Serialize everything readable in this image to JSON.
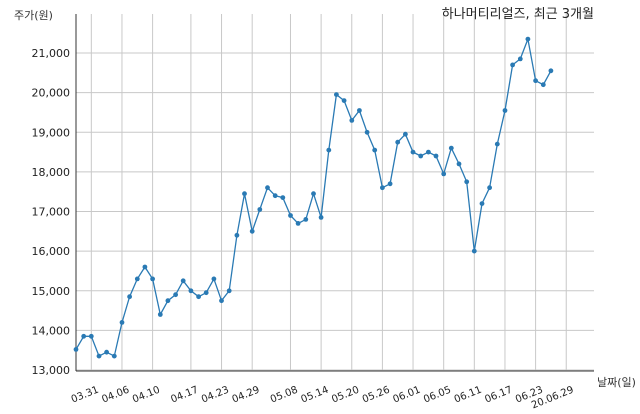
{
  "chart_data": {
    "type": "line",
    "title": "하나머티리얼즈, 최근 3개월",
    "ylabel": "주가(원)",
    "xlabel": "날짜(일)",
    "ylim": [
      13000,
      21700
    ],
    "yticks": [
      13000,
      14000,
      15000,
      16000,
      17000,
      18000,
      19000,
      20000,
      21000
    ],
    "ytick_labels": [
      "13,000",
      "14,000",
      "15,000",
      "16,000",
      "17,000",
      "18,000",
      "19,000",
      "20,000",
      "21,000"
    ],
    "grid": true,
    "color": "#2a7ab4",
    "x_ticks": [
      {
        "label": "03.31",
        "index": 2
      },
      {
        "label": "04.06",
        "index": 6
      },
      {
        "label": "04.10",
        "index": 10
      },
      {
        "label": "04.17",
        "index": 15
      },
      {
        "label": "04.23",
        "index": 19
      },
      {
        "label": "04.29",
        "index": 23
      },
      {
        "label": "05.08",
        "index": 28
      },
      {
        "label": "05.14",
        "index": 32
      },
      {
        "label": "05.20",
        "index": 36
      },
      {
        "label": "05.26",
        "index": 40
      },
      {
        "label": "06.01",
        "index": 44
      },
      {
        "label": "06.05",
        "index": 48
      },
      {
        "label": "06.11",
        "index": 52
      },
      {
        "label": "06.17",
        "index": 56
      },
      {
        "label": "06.23",
        "index": 60
      },
      {
        "label": "20.06.29",
        "index": 64
      }
    ],
    "series": [
      {
        "values": [
          13520,
          13850,
          13850,
          13350,
          13450,
          13350,
          14200,
          14850,
          15300,
          15600,
          15300,
          14400,
          14750,
          14900,
          15250,
          15000,
          14850,
          14950,
          15300,
          14750,
          15000,
          16400,
          17450,
          16500,
          17050,
          17600,
          17400,
          17350,
          16900,
          16700,
          16800,
          17450,
          16850,
          18550,
          19950,
          19800,
          19300,
          19550,
          19000,
          18550,
          17600,
          17700,
          18750,
          18950,
          18500,
          18400,
          18500,
          18400,
          17950,
          18600,
          18200,
          17750,
          16000,
          17200,
          17600,
          18700,
          19550,
          20700,
          20850,
          21350,
          20300,
          20200,
          20550
        ]
      }
    ]
  }
}
